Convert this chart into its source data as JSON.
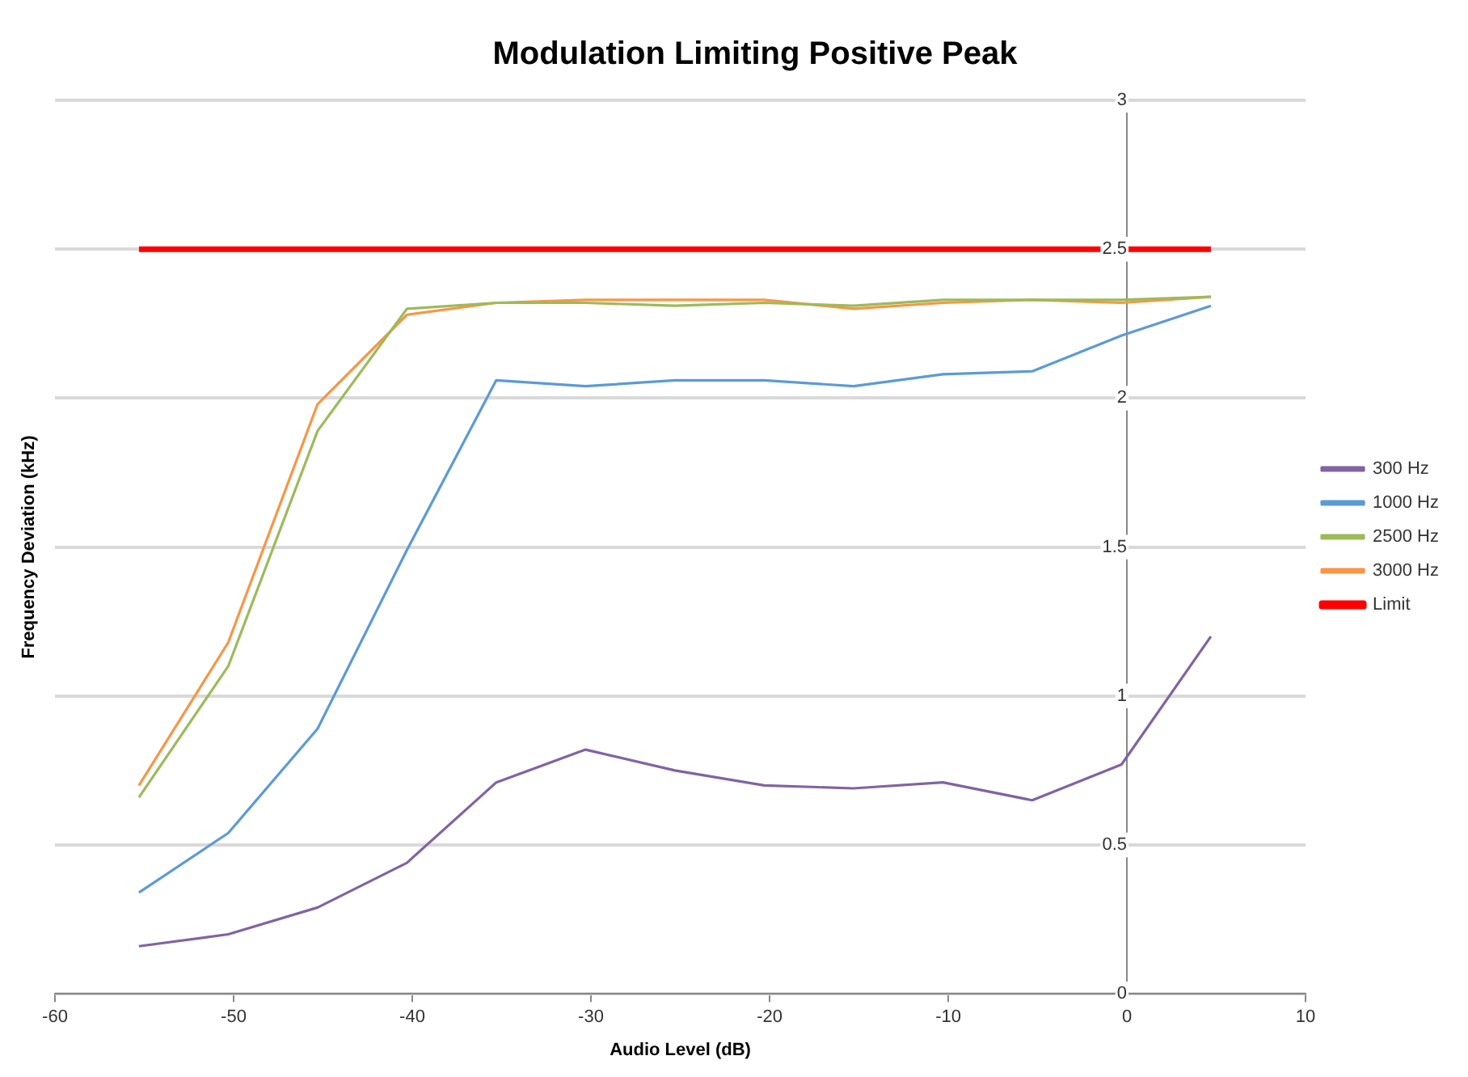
{
  "chart_data": {
    "type": "line",
    "title": "Modulation Limiting Positive Peak",
    "xlabel": "Audio Level (dB)",
    "ylabel": "Frequency Deviation (kHz)",
    "x": [
      -55.3,
      -50.3,
      -45.3,
      -40.3,
      -35.3,
      -30.3,
      -25.3,
      -20.3,
      -15.3,
      -10.3,
      -5.3,
      -0.3,
      4.7
    ],
    "series": [
      {
        "name": "300 Hz",
        "color": "#8064a2",
        "values": [
          0.16,
          0.2,
          0.29,
          0.44,
          0.71,
          0.82,
          0.75,
          0.7,
          0.69,
          0.71,
          0.65,
          0.77,
          1.2
        ]
      },
      {
        "name": "1000 Hz",
        "color": "#5b9bd5",
        "values": [
          0.34,
          0.54,
          0.89,
          1.49,
          2.06,
          2.04,
          2.06,
          2.06,
          2.04,
          2.08,
          2.09,
          2.21,
          2.31
        ]
      },
      {
        "name": "2500 Hz",
        "color": "#9bbb59",
        "values": [
          0.66,
          1.1,
          1.89,
          2.3,
          2.32,
          2.32,
          2.31,
          2.32,
          2.31,
          2.33,
          2.33,
          2.33,
          2.34
        ]
      },
      {
        "name": "3000 Hz",
        "color": "#f79646",
        "values": [
          0.7,
          1.18,
          1.98,
          2.28,
          2.32,
          2.33,
          2.33,
          2.33,
          2.3,
          2.32,
          2.33,
          2.32,
          2.34
        ]
      },
      {
        "name": "Limit",
        "color": "#ff0000",
        "x": [
          -55.3,
          4.7
        ],
        "values": [
          2.5,
          2.5
        ]
      }
    ],
    "xlim": [
      -60,
      10
    ],
    "xticks": [
      -60,
      -50,
      -40,
      -30,
      -20,
      -10,
      0,
      10
    ],
    "ylim": [
      0,
      3
    ],
    "yticks": [
      0,
      0.5,
      1,
      1.5,
      2,
      2.5,
      3
    ],
    "grid": "y",
    "legend": "right",
    "marker": "none",
    "line_style": "solid"
  }
}
